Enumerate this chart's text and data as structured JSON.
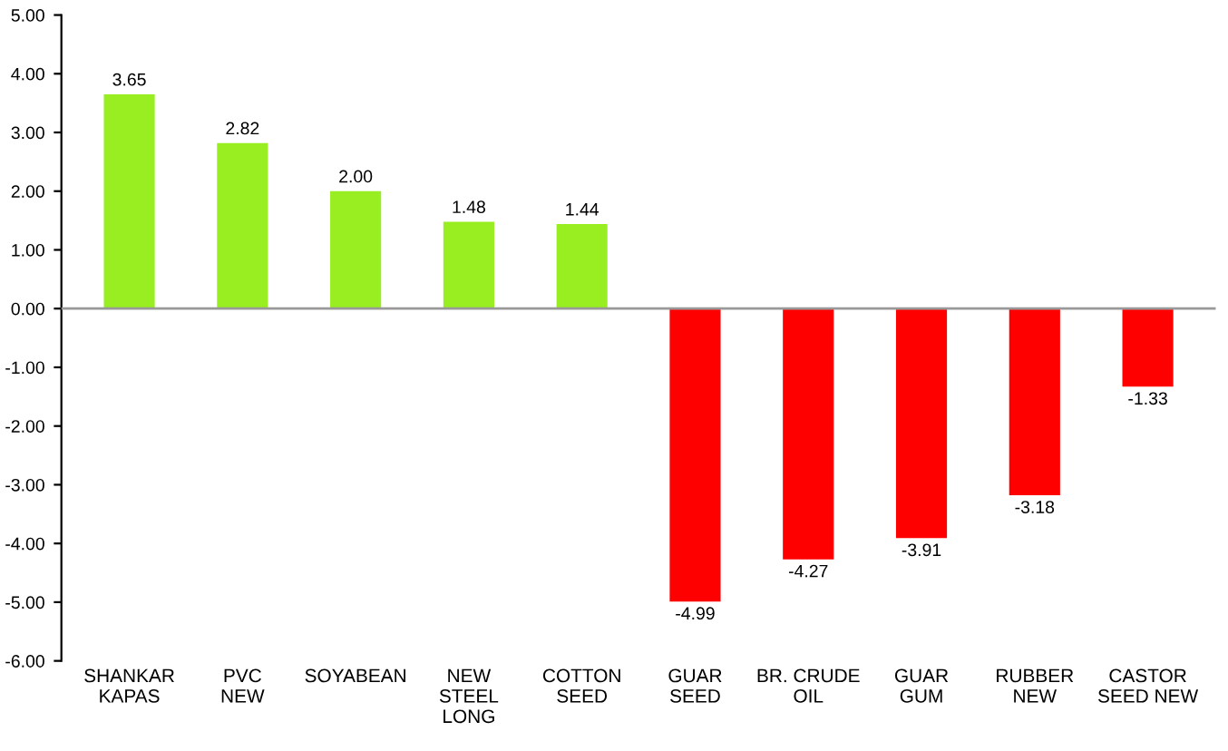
{
  "chart_data": {
    "type": "bar",
    "categories": [
      "SHANKAR\nKAPAS",
      "PVC\nNEW",
      "SOYABEAN",
      "NEW\nSTEEL\nLONG",
      "COTTON\nSEED",
      "GUAR\nSEED",
      "BR. CRUDE\nOIL",
      "GUAR\nGUM",
      "RUBBER\nNEW",
      "CASTOR\nSEED NEW"
    ],
    "values": [
      3.65,
      2.82,
      2.0,
      1.48,
      1.44,
      -4.99,
      -4.27,
      -3.91,
      -3.18,
      -1.33
    ],
    "colors": [
      "#99ee22",
      "#99ee22",
      "#99ee22",
      "#99ee22",
      "#99ee22",
      "#ff0000",
      "#ff0000",
      "#ff0000",
      "#ff0000",
      "#ff0000"
    ],
    "value_labels": [
      "3.65",
      "2.82",
      "2.00",
      "1.48",
      "1.44",
      "-4.99",
      "-4.27",
      "-3.91",
      "-3.18",
      "-1.33"
    ],
    "ylim": [
      -6,
      5
    ],
    "yticks": [
      {
        "value": -6,
        "label": "-6.00"
      },
      {
        "value": -5,
        "label": "-5.00"
      },
      {
        "value": -4,
        "label": "-4.00"
      },
      {
        "value": -3,
        "label": "-3.00"
      },
      {
        "value": -2,
        "label": "-2.00"
      },
      {
        "value": -1,
        "label": "-1.00"
      },
      {
        "value": 0,
        "label": "0.00"
      },
      {
        "value": 1,
        "label": "1.00"
      },
      {
        "value": 2,
        "label": "2.00"
      },
      {
        "value": 3,
        "label": "3.00"
      },
      {
        "value": 4,
        "label": "4.00"
      },
      {
        "value": 5,
        "label": "5.00"
      }
    ],
    "ref_lines": [
      {
        "axis": "y",
        "value": 0,
        "color": "#999999"
      }
    ],
    "grid": false,
    "legend": false
  }
}
